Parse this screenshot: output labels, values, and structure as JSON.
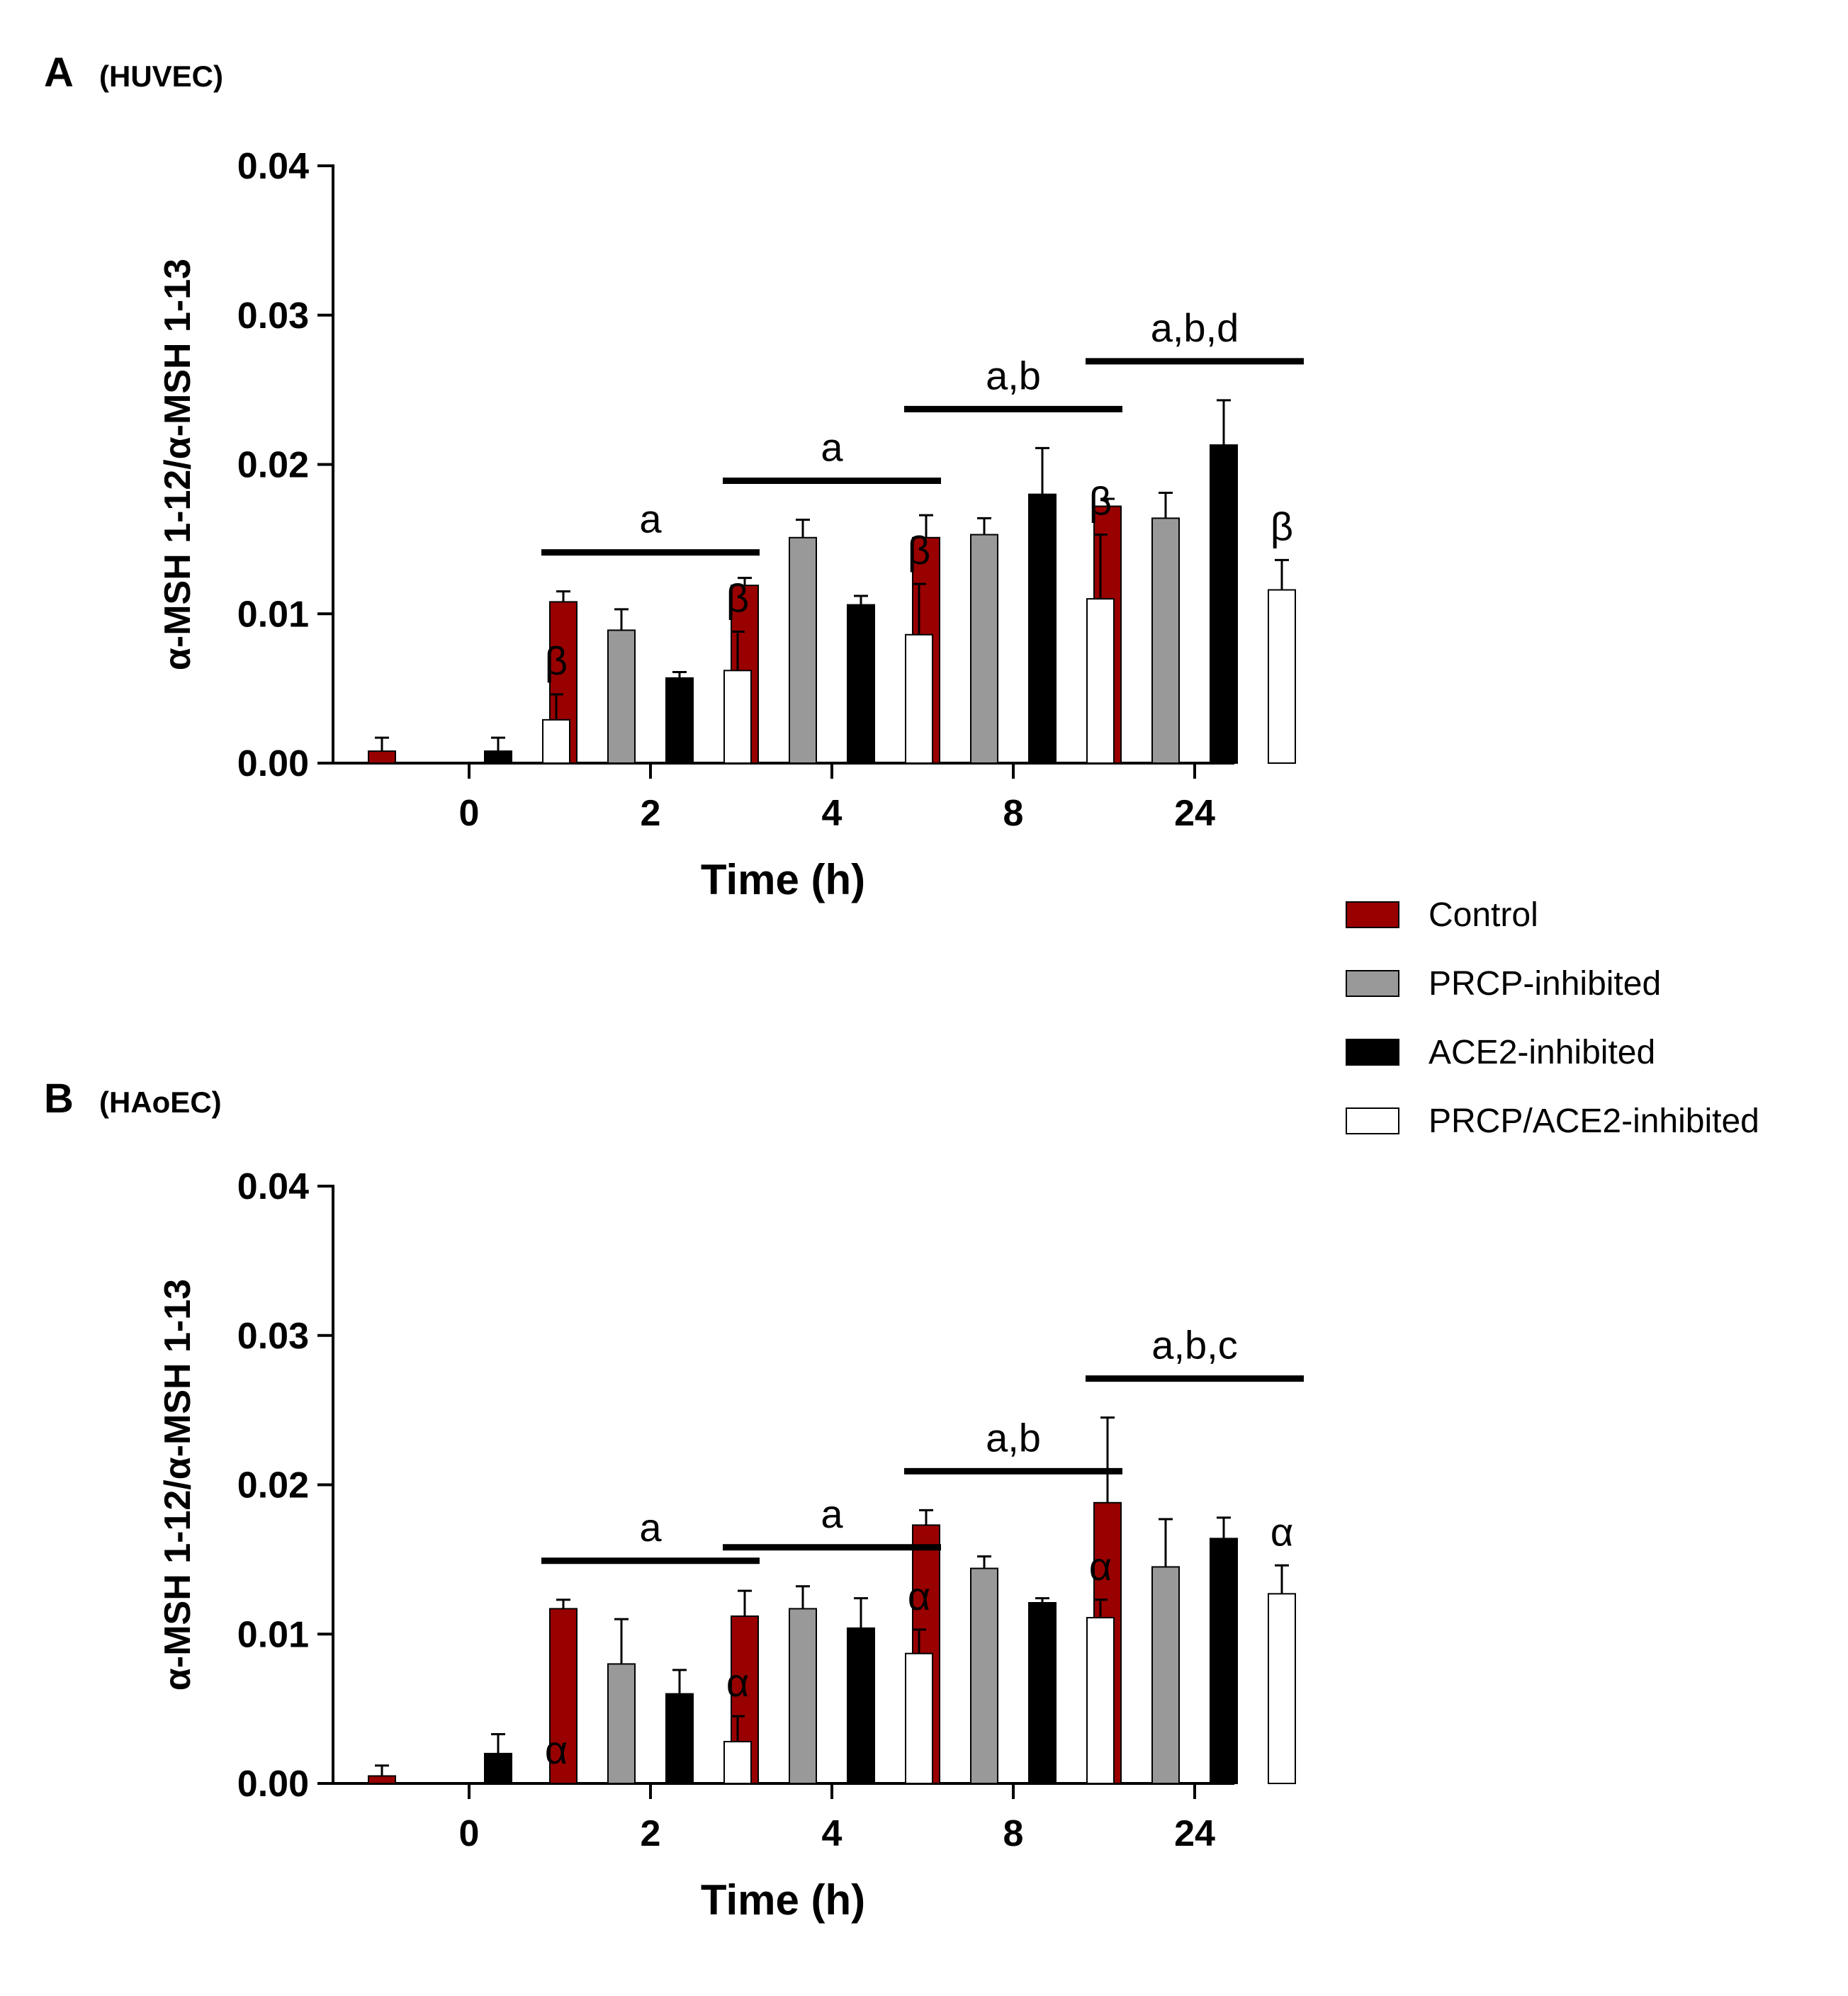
{
  "legend": [
    {
      "name": "Control",
      "color": "#990000"
    },
    {
      "name": "PRCP-inhibited",
      "color": "#999999"
    },
    {
      "name": "ACE2-inhibited",
      "color": "#000000"
    },
    {
      "name": "PRCP/ACE2-inhibited",
      "color": "#ffffff"
    }
  ],
  "chart_data": [
    {
      "type": "bar",
      "panel": "A",
      "cell": "(HUVEC)",
      "xlabel": "Time (h)",
      "ylabel": "α-MSH 1-12/α-MSH 1-13",
      "ylim": [
        0,
        0.04
      ],
      "yticks": [
        "0.00",
        "0.01",
        "0.02",
        "0.03",
        "0.04"
      ],
      "categories": [
        "0",
        "2",
        "4",
        "8",
        "24"
      ],
      "series": [
        {
          "name": "Control",
          "values": [
            0.0008,
            0.0108,
            0.0119,
            0.0151,
            0.0172
          ],
          "errors": [
            0.0009,
            0.0007,
            0.0005,
            0.0015,
            0.0005
          ]
        },
        {
          "name": "PRCP-inhibited",
          "values": [
            0,
            0.0089,
            0.0151,
            0.0153,
            0.0164
          ],
          "errors": [
            0,
            0.0014,
            0.0012,
            0.0011,
            0.0017
          ]
        },
        {
          "name": "ACE2-inhibited",
          "values": [
            0.0008,
            0.0057,
            0.0106,
            0.018,
            0.0213
          ],
          "errors": [
            0.0009,
            0.0004,
            0.0006,
            0.0031,
            0.003
          ]
        },
        {
          "name": "PRCP/ACE2-inhibited",
          "values": [
            0.0029,
            0.0062,
            0.0086,
            0.011,
            0.0116
          ],
          "errors": [
            0.0017,
            0.0026,
            0.0034,
            0.0043,
            0.002
          ]
        }
      ],
      "group_annotations": [
        {
          "category": "2",
          "text": "a"
        },
        {
          "category": "4",
          "text": "a"
        },
        {
          "category": "8",
          "text": "a,b"
        },
        {
          "category": "24",
          "text": "a,b,d"
        }
      ],
      "symbol_annotations": [
        {
          "category": "0",
          "text": "β"
        },
        {
          "category": "2",
          "text": "β"
        },
        {
          "category": "4",
          "text": "β"
        },
        {
          "category": "8",
          "text": "β"
        },
        {
          "category": "24",
          "text": "β"
        }
      ]
    },
    {
      "type": "bar",
      "panel": "B",
      "cell": "(HAoEC)",
      "xlabel": "Time (h)",
      "ylabel": "α-MSH 1-12/α-MSH 1-13",
      "ylim": [
        0,
        0.04
      ],
      "yticks": [
        "0.00",
        "0.01",
        "0.02",
        "0.03",
        "0.04"
      ],
      "categories": [
        "0",
        "2",
        "4",
        "8",
        "24"
      ],
      "series": [
        {
          "name": "Control",
          "values": [
            0.0005,
            0.0117,
            0.0112,
            0.0173,
            0.0188
          ],
          "errors": [
            0.0007,
            0.0006,
            0.0017,
            0.001,
            0.0057
          ]
        },
        {
          "name": "PRCP-inhibited",
          "values": [
            0,
            0.008,
            0.0117,
            0.0144,
            0.0145
          ],
          "errors": [
            0,
            0.003,
            0.0015,
            0.0008,
            0.0032
          ]
        },
        {
          "name": "ACE2-inhibited",
          "values": [
            0.002,
            0.006,
            0.0104,
            0.0121,
            0.0164
          ],
          "errors": [
            0.0013,
            0.0016,
            0.002,
            0.0003,
            0.0014
          ]
        },
        {
          "name": "PRCP/ACE2-inhibited",
          "values": [
            0,
            0.0028,
            0.0087,
            0.0111,
            0.0127
          ],
          "errors": [
            0,
            0.0017,
            0.0016,
            0.0012,
            0.0019
          ]
        }
      ],
      "group_annotations": [
        {
          "category": "2",
          "text": "a"
        },
        {
          "category": "4",
          "text": "a"
        },
        {
          "category": "8",
          "text": "a,b"
        },
        {
          "category": "24",
          "text": "a,b,c"
        }
      ],
      "symbol_annotations": [
        {
          "category": "0",
          "text": "α"
        },
        {
          "category": "2",
          "text": "α"
        },
        {
          "category": "4",
          "text": "α"
        },
        {
          "category": "8",
          "text": "α"
        },
        {
          "category": "24",
          "text": "α"
        }
      ]
    }
  ]
}
